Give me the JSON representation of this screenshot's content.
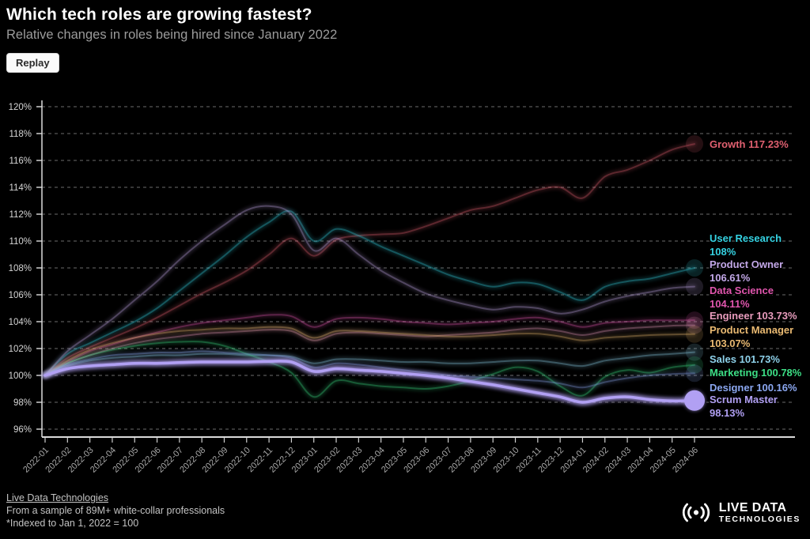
{
  "header": {
    "title": "Which tech roles are growing fastest?",
    "subtitle": "Relative changes in roles being hired since January 2022"
  },
  "controls": {
    "replay_label": "Replay"
  },
  "chart_data": {
    "type": "line",
    "title": "Which tech roles are growing fastest?",
    "ylabel": "",
    "xlabel": "",
    "ylim": [
      95,
      121
    ],
    "yticks": [
      96,
      98,
      100,
      102,
      104,
      106,
      108,
      110,
      112,
      114,
      116,
      118,
      120
    ],
    "ytick_suffix": "%",
    "grid": "dashed-horizontal",
    "legend_position": "right-end-of-line",
    "x": [
      "2022-01",
      "2022-02",
      "2022-03",
      "2022-04",
      "2022-05",
      "2022-06",
      "2022-07",
      "2022-08",
      "2022-09",
      "2022-10",
      "2022-11",
      "2022-12",
      "2023-01",
      "2023-02",
      "2023-03",
      "2023-04",
      "2023-05",
      "2023-06",
      "2023-07",
      "2023-08",
      "2023-09",
      "2023-10",
      "2023-11",
      "2023-12",
      "2024-01",
      "2024-02",
      "2024-03",
      "2024-04",
      "2024-05",
      "2024-06"
    ],
    "series": [
      {
        "name": "Growth",
        "color": "#e06070",
        "highlighted": false,
        "end_value": 117.23,
        "label_lines": [
          "Growth 117.23%"
        ],
        "values": [
          100,
          101.3,
          102.1,
          102.8,
          103.5,
          104.3,
          105.2,
          106.1,
          106.9,
          107.8,
          109.0,
          110.2,
          108.9,
          110.1,
          110.4,
          110.5,
          110.6,
          111.1,
          111.7,
          112.3,
          112.6,
          113.2,
          113.8,
          114.0,
          113.2,
          114.8,
          115.3,
          116.0,
          116.8,
          117.23
        ]
      },
      {
        "name": "User Research",
        "color": "#35d2e2",
        "highlighted": false,
        "end_value": 108,
        "label_lines": [
          "User Research",
          "108%"
        ],
        "values": [
          100,
          101.6,
          102.4,
          103.2,
          104.0,
          105.0,
          106.3,
          107.6,
          108.9,
          110.3,
          111.4,
          112.2,
          110.0,
          110.9,
          110.4,
          109.6,
          108.9,
          108.2,
          107.5,
          107.0,
          106.6,
          106.9,
          106.8,
          106.2,
          105.6,
          106.6,
          107.0,
          107.2,
          107.6,
          108.0
        ]
      },
      {
        "name": "Product Owner",
        "color": "#c3a8e8",
        "highlighted": false,
        "end_value": 106.61,
        "label_lines": [
          "Product Owner",
          "106.61%"
        ],
        "values": [
          100,
          101.8,
          103.0,
          104.2,
          105.6,
          107.0,
          108.6,
          110.0,
          111.2,
          112.3,
          112.6,
          112.0,
          109.3,
          110.2,
          109.0,
          107.8,
          106.9,
          106.1,
          105.6,
          105.2,
          104.9,
          105.1,
          105.0,
          104.6,
          104.9,
          105.5,
          105.9,
          106.2,
          106.5,
          106.61
        ]
      },
      {
        "name": "Data Science",
        "color": "#e156ae",
        "highlighted": false,
        "end_value": 104.11,
        "label_lines": [
          "Data Science",
          "104.11%"
        ],
        "values": [
          100,
          101.0,
          101.8,
          102.3,
          102.8,
          103.2,
          103.6,
          103.9,
          104.1,
          104.3,
          104.5,
          104.4,
          103.6,
          104.2,
          104.3,
          104.2,
          104.0,
          103.9,
          103.8,
          103.9,
          104.0,
          104.2,
          104.3,
          104.0,
          103.6,
          103.9,
          104.0,
          104.1,
          104.1,
          104.11
        ]
      },
      {
        "name": "Engineer",
        "color": "#e89cbd",
        "highlighted": false,
        "end_value": 103.73,
        "label_lines": [
          "Engineer 103.73%"
        ],
        "values": [
          100,
          100.9,
          101.5,
          102.0,
          102.4,
          102.7,
          102.9,
          103.1,
          103.2,
          103.3,
          103.4,
          103.3,
          102.6,
          103.1,
          103.2,
          103.1,
          103.0,
          102.9,
          103.0,
          103.1,
          103.2,
          103.4,
          103.5,
          103.3,
          103.0,
          103.3,
          103.5,
          103.6,
          103.7,
          103.73
        ]
      },
      {
        "name": "Product Manager",
        "color": "#eaba72",
        "highlighted": false,
        "end_value": 103.07,
        "label_lines": [
          "Product Manager",
          "103.07%"
        ],
        "values": [
          100,
          101.1,
          101.9,
          102.4,
          102.8,
          103.1,
          103.3,
          103.4,
          103.5,
          103.5,
          103.6,
          103.5,
          102.8,
          103.3,
          103.3,
          103.2,
          103.1,
          103.0,
          102.9,
          102.9,
          103.0,
          103.1,
          103.1,
          102.9,
          102.6,
          102.8,
          102.9,
          103.0,
          103.05,
          103.07
        ]
      },
      {
        "name": "Sales",
        "color": "#8ed1ea",
        "highlighted": false,
        "end_value": 101.73,
        "label_lines": [
          "Sales 101.73%"
        ],
        "values": [
          100,
          100.7,
          101.1,
          101.3,
          101.4,
          101.5,
          101.5,
          101.6,
          101.6,
          101.5,
          101.5,
          101.4,
          100.9,
          101.2,
          101.2,
          101.1,
          101.0,
          101.0,
          100.9,
          100.9,
          101.0,
          101.1,
          101.1,
          100.9,
          100.7,
          101.1,
          101.3,
          101.5,
          101.6,
          101.73
        ]
      },
      {
        "name": "Marketing",
        "color": "#3ddf86",
        "highlighted": false,
        "end_value": 100.78,
        "label_lines": [
          "Marketing 100.78%"
        ],
        "values": [
          100,
          100.9,
          101.5,
          101.9,
          102.2,
          102.4,
          102.5,
          102.5,
          102.2,
          101.6,
          101.0,
          100.2,
          98.4,
          99.6,
          99.4,
          99.2,
          99.1,
          99.0,
          99.2,
          99.6,
          100.1,
          100.6,
          100.3,
          99.2,
          98.5,
          99.9,
          100.4,
          100.2,
          100.6,
          100.78
        ]
      },
      {
        "name": "Designer",
        "color": "#8ba7f0",
        "highlighted": false,
        "end_value": 100.16,
        "label_lines": [
          "Designer 100.16%"
        ],
        "values": [
          100,
          100.8,
          101.2,
          101.5,
          101.6,
          101.7,
          101.7,
          101.8,
          101.7,
          101.6,
          101.5,
          101.3,
          100.6,
          100.9,
          100.8,
          100.6,
          100.4,
          100.2,
          100.0,
          99.9,
          99.8,
          99.7,
          99.6,
          99.4,
          99.1,
          99.5,
          99.8,
          100.0,
          100.1,
          100.16
        ]
      },
      {
        "name": "Scrum Master",
        "color": "#b1a0f3",
        "highlighted": true,
        "end_value": 98.13,
        "label_lines": [
          "Scrum Master",
          "98.13%"
        ],
        "values": [
          100,
          100.5,
          100.7,
          100.8,
          100.9,
          100.9,
          100.95,
          101.0,
          101.0,
          101.0,
          101.05,
          101.0,
          100.3,
          100.5,
          100.4,
          100.3,
          100.15,
          100.0,
          99.8,
          99.55,
          99.3,
          99.0,
          98.7,
          98.4,
          98.0,
          98.3,
          98.4,
          98.2,
          98.1,
          98.13
        ]
      }
    ]
  },
  "footer": {
    "source": "Live Data Technologies",
    "note1": "From a sample of 89M+ white-collar professionals",
    "note2": "*Indexed to Jan 1, 2022 = 100"
  },
  "logo": {
    "line1": "LIVE DATA",
    "line2": "TECHNOLOGIES"
  }
}
